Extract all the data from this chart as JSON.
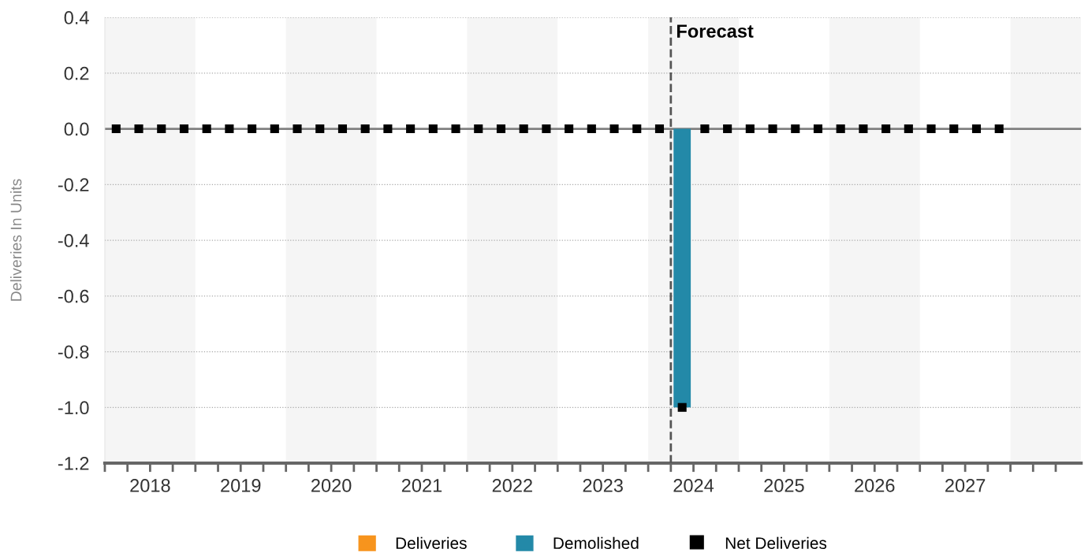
{
  "chart_data": {
    "type": "bar",
    "ylabel": "Deliveries In Units",
    "x": [
      2018.125,
      2018.375,
      2018.625,
      2018.875,
      2019.125,
      2019.375,
      2019.625,
      2019.875,
      2020.125,
      2020.375,
      2020.625,
      2020.875,
      2021.125,
      2021.375,
      2021.625,
      2021.875,
      2022.125,
      2022.375,
      2022.625,
      2022.875,
      2023.125,
      2023.375,
      2023.625,
      2023.875,
      2024.125,
      2024.375,
      2024.625,
      2024.875,
      2025.125,
      2025.375,
      2025.625,
      2025.875,
      2026.125,
      2026.375,
      2026.625,
      2026.875,
      2027.125,
      2027.375,
      2027.625,
      2027.875
    ],
    "series": [
      {
        "name": "Deliveries",
        "color": "#f7941d",
        "values": [
          0,
          0,
          0,
          0,
          0,
          0,
          0,
          0,
          0,
          0,
          0,
          0,
          0,
          0,
          0,
          0,
          0,
          0,
          0,
          0,
          0,
          0,
          0,
          0,
          0,
          0,
          0,
          0,
          0,
          0,
          0,
          0,
          0,
          0,
          0,
          0,
          0,
          0,
          0,
          0
        ]
      },
      {
        "name": "Demolished",
        "color": "#2389a8",
        "values": [
          0,
          0,
          0,
          0,
          0,
          0,
          0,
          0,
          0,
          0,
          0,
          0,
          0,
          0,
          0,
          0,
          0,
          0,
          0,
          0,
          0,
          0,
          0,
          0,
          0,
          -1,
          0,
          0,
          0,
          0,
          0,
          0,
          0,
          0,
          0,
          0,
          0,
          0,
          0,
          0
        ]
      },
      {
        "name": "Net Deliveries",
        "type": "scatter",
        "marker": "square",
        "color": "#000000",
        "values": [
          0,
          0,
          0,
          0,
          0,
          0,
          0,
          0,
          0,
          0,
          0,
          0,
          0,
          0,
          0,
          0,
          0,
          0,
          0,
          0,
          0,
          0,
          0,
          0,
          0,
          -1,
          0,
          0,
          0,
          0,
          0,
          0,
          0,
          0,
          0,
          0,
          0,
          0,
          0,
          0
        ]
      }
    ],
    "xlim": [
      2018,
      2028.78
    ],
    "xticks": [
      {
        "value": 2018,
        "label": null
      },
      {
        "value": 2018.25,
        "label": null
      },
      {
        "value": 2018.5,
        "label": "2018"
      },
      {
        "value": 2018.75,
        "label": null
      },
      {
        "value": 2019,
        "label": null
      },
      {
        "value": 2019.25,
        "label": null
      },
      {
        "value": 2019.5,
        "label": "2019"
      },
      {
        "value": 2019.75,
        "label": null
      },
      {
        "value": 2020,
        "label": null
      },
      {
        "value": 2020.25,
        "label": null
      },
      {
        "value": 2020.5,
        "label": "2020"
      },
      {
        "value": 2020.75,
        "label": null
      },
      {
        "value": 2021,
        "label": null
      },
      {
        "value": 2021.25,
        "label": null
      },
      {
        "value": 2021.5,
        "label": "2021"
      },
      {
        "value": 2021.75,
        "label": null
      },
      {
        "value": 2022,
        "label": null
      },
      {
        "value": 2022.25,
        "label": null
      },
      {
        "value": 2022.5,
        "label": "2022"
      },
      {
        "value": 2022.75,
        "label": null
      },
      {
        "value": 2023,
        "label": null
      },
      {
        "value": 2023.25,
        "label": null
      },
      {
        "value": 2023.5,
        "label": "2023"
      },
      {
        "value": 2023.75,
        "label": null
      },
      {
        "value": 2024,
        "label": null
      },
      {
        "value": 2024.25,
        "label": null
      },
      {
        "value": 2024.5,
        "label": "2024"
      },
      {
        "value": 2024.75,
        "label": null
      },
      {
        "value": 2025,
        "label": null
      },
      {
        "value": 2025.25,
        "label": null
      },
      {
        "value": 2025.5,
        "label": "2025"
      },
      {
        "value": 2025.75,
        "label": null
      },
      {
        "value": 2026,
        "label": null
      },
      {
        "value": 2026.25,
        "label": null
      },
      {
        "value": 2026.5,
        "label": "2026"
      },
      {
        "value": 2026.75,
        "label": null
      },
      {
        "value": 2027,
        "label": null
      },
      {
        "value": 2027.25,
        "label": null
      },
      {
        "value": 2027.5,
        "label": "2027"
      },
      {
        "value": 2027.75,
        "label": null
      },
      {
        "value": 2028,
        "label": null
      },
      {
        "value": 2028.25,
        "label": null
      },
      {
        "value": 2028.5,
        "label": null
      }
    ],
    "ylim": [
      -1.2,
      0.4
    ],
    "yticks": [
      -1.2,
      {
        "value": -1.0,
        "label": "-1.0"
      },
      -0.8,
      -0.6,
      -0.4,
      -0.2,
      {
        "value": 0,
        "label": "0.0"
      },
      0.2,
      0.4
    ],
    "grid": "y",
    "legend": "bottom",
    "ref_lines": [
      {
        "axis": "y",
        "value": 0,
        "label": null,
        "color": "#808080",
        "line_style": "solid"
      },
      {
        "axis": "x",
        "value": 2024.25,
        "label": "Forecast",
        "color": "#555555",
        "line_style": "dashed"
      }
    ],
    "bands": [
      {
        "axis": "x",
        "from": 2018,
        "to": 2019,
        "label": null,
        "color": "#f5f5f5"
      },
      {
        "axis": "x",
        "from": 2020,
        "to": 2021,
        "label": null,
        "color": "#f5f5f5"
      },
      {
        "axis": "x",
        "from": 2022,
        "to": 2023,
        "label": null,
        "color": "#f5f5f5"
      },
      {
        "axis": "x",
        "from": 2024,
        "to": 2025,
        "label": null,
        "color": "#f5f5f5"
      },
      {
        "axis": "x",
        "from": 2026,
        "to": 2027,
        "label": null,
        "color": "#f5f5f5"
      },
      {
        "axis": "x",
        "from": 2028,
        "to": 2028.78,
        "label": null,
        "color": "#f5f5f5"
      }
    ]
  }
}
